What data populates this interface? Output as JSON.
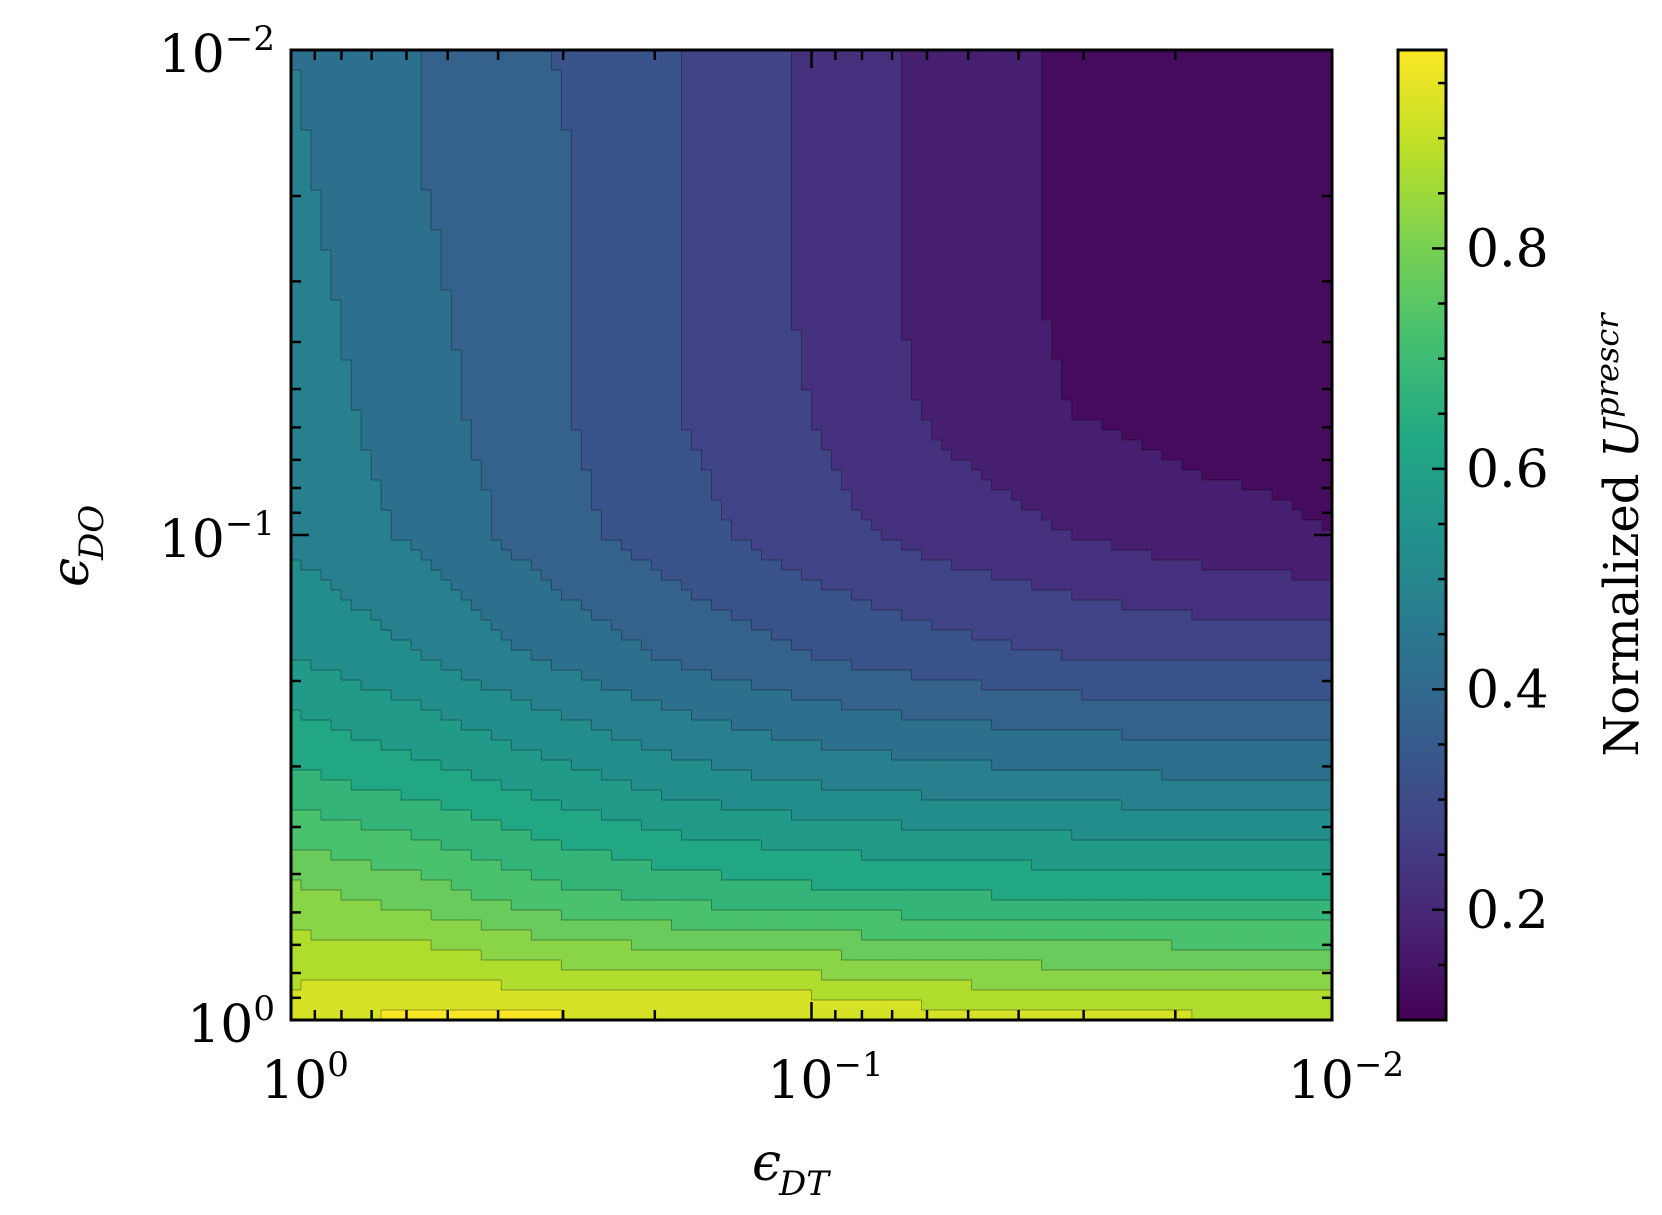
{
  "chart_data": {
    "type": "contour",
    "x": {
      "symbol": "ϵ",
      "subscript": "DT",
      "scale": "log",
      "direction": "decreasing",
      "range": [
        1,
        0.01
      ],
      "ticks": [
        {
          "value": 1,
          "base": "10",
          "exp": "0"
        },
        {
          "value": 0.1,
          "base": "10",
          "exp": "−1"
        },
        {
          "value": 0.01,
          "base": "10",
          "exp": "−2"
        }
      ]
    },
    "y": {
      "symbol": "ϵ",
      "subscript": "DO",
      "scale": "log",
      "direction": "decreasing-upward",
      "range": [
        1,
        0.01
      ],
      "ticks": [
        {
          "value": 1,
          "base": "10",
          "exp": "0"
        },
        {
          "value": 0.1,
          "base": "10",
          "exp": "−1"
        },
        {
          "value": 0.01,
          "base": "10",
          "exp": "−2"
        }
      ]
    },
    "colorbar": {
      "label_prefix": "Normalized ",
      "label_var": "U",
      "label_sup": "prescr",
      "colormap": "viridis",
      "range": [
        0.1,
        0.98
      ],
      "ticks": [
        "0.2",
        "0.4",
        "0.6",
        "0.8"
      ],
      "tick_values": [
        0.2,
        0.4,
        0.6,
        0.8
      ]
    },
    "levels": [
      0.1,
      0.15,
      0.2,
      0.25,
      0.3,
      0.35,
      0.4,
      0.45,
      0.5,
      0.55,
      0.6,
      0.65,
      0.7,
      0.75,
      0.8,
      0.85,
      0.9,
      0.95
    ],
    "grid_x_log10": [
      0,
      -0.25,
      -0.5,
      -0.75,
      -1,
      -1.25,
      -1.5,
      -1.75,
      -2
    ],
    "grid_y_log10": [
      0,
      -0.25,
      -0.5,
      -0.75,
      -1,
      -1.25,
      -1.5,
      -1.75,
      -2
    ],
    "z": [
      [
        0.93,
        0.97,
        0.96,
        0.96,
        0.96,
        0.93,
        0.92,
        0.91,
        0.91
      ],
      [
        0.82,
        0.78,
        0.72,
        0.69,
        0.67,
        0.66,
        0.65,
        0.65,
        0.65
      ],
      [
        0.66,
        0.62,
        0.57,
        0.52,
        0.49,
        0.47,
        0.46,
        0.45,
        0.45
      ],
      [
        0.55,
        0.5,
        0.44,
        0.39,
        0.35,
        0.32,
        0.3,
        0.29,
        0.29
      ],
      [
        0.49,
        0.44,
        0.37,
        0.32,
        0.27,
        0.23,
        0.2,
        0.17,
        0.15
      ],
      [
        0.48,
        0.42,
        0.36,
        0.3,
        0.25,
        0.19,
        0.15,
        0.13,
        0.13
      ],
      [
        0.47,
        0.41,
        0.36,
        0.3,
        0.24,
        0.18,
        0.14,
        0.12,
        0.12
      ],
      [
        0.46,
        0.4,
        0.36,
        0.3,
        0.24,
        0.18,
        0.14,
        0.12,
        0.12
      ],
      [
        0.45,
        0.4,
        0.35,
        0.3,
        0.24,
        0.18,
        0.14,
        0.12,
        0.12
      ]
    ]
  }
}
